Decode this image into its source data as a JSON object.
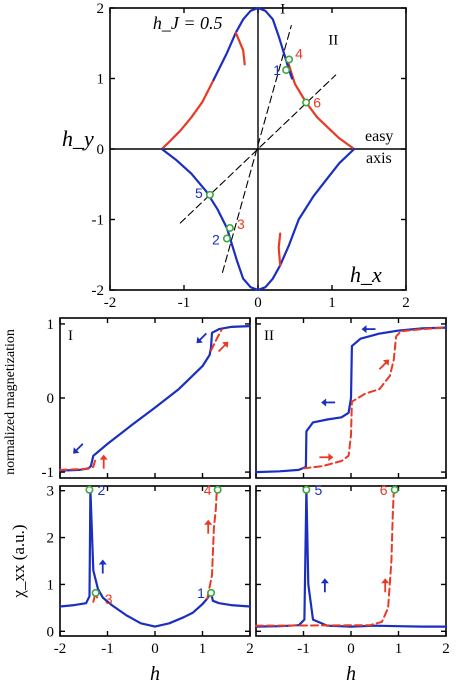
{
  "chart_data": [
    {
      "id": "top",
      "type": "line",
      "title": "h_J = 0.5",
      "xlabel": "h_x",
      "ylabel": "h_y",
      "xlim": [
        -2,
        2
      ],
      "ylim": [
        -2,
        2
      ],
      "xticks": [
        "-2",
        "-1",
        "0",
        "1",
        "2"
      ],
      "yticks": [
        "2",
        "1",
        "0",
        "-1",
        "-2"
      ],
      "annotations": {
        "easy_axis": [
          "easy",
          "axis"
        ],
        "line_I": "I",
        "line_II": "II"
      },
      "curves": {
        "blue_top": [
          [
            -0.6,
            0.98
          ],
          [
            -0.42,
            1.36
          ],
          [
            -0.3,
            1.65
          ],
          [
            -0.2,
            1.84
          ],
          [
            -0.1,
            1.96
          ],
          [
            0,
            2.0
          ],
          [
            0.1,
            1.96
          ],
          [
            0.2,
            1.84
          ],
          [
            0.28,
            1.6
          ],
          [
            0.35,
            1.36
          ],
          [
            0.42,
            1.12
          ],
          [
            0.46,
            1.0
          ]
        ],
        "blue_top_hook": [
          [
            -0.3,
            1.65
          ],
          [
            -0.2,
            1.4
          ],
          [
            -0.18,
            1.2
          ]
        ],
        "red_left_top": [
          [
            -1.3,
            0.0
          ],
          [
            -1.2,
            0.1
          ],
          [
            -1.05,
            0.26
          ],
          [
            -0.9,
            0.45
          ],
          [
            -0.75,
            0.67
          ],
          [
            -0.6,
            0.98
          ]
        ],
        "red_right_top": [
          [
            0.4,
            1.25
          ],
          [
            0.5,
            0.92
          ],
          [
            0.65,
            0.66
          ],
          [
            0.8,
            0.45
          ],
          [
            0.95,
            0.3
          ],
          [
            1.1,
            0.15
          ],
          [
            1.3,
            0.0
          ]
        ],
        "blue_bottom": [
          [
            -1.3,
            0.0
          ],
          [
            -1.1,
            -0.16
          ],
          [
            -0.9,
            -0.35
          ],
          [
            -0.7,
            -0.6
          ],
          [
            -0.55,
            -0.85
          ],
          [
            -0.42,
            -1.12
          ],
          [
            -0.35,
            -1.36
          ],
          [
            -0.28,
            -1.6
          ],
          [
            -0.2,
            -1.84
          ],
          [
            -0.1,
            -1.96
          ],
          [
            0,
            -2.0
          ],
          [
            0.1,
            -1.96
          ],
          [
            0.2,
            -1.84
          ],
          [
            0.3,
            -1.65
          ],
          [
            0.42,
            -1.36
          ],
          [
            0.55,
            -1.0
          ],
          [
            0.75,
            -0.67
          ],
          [
            0.95,
            -0.4
          ],
          [
            1.1,
            -0.2
          ],
          [
            1.3,
            0.0
          ]
        ],
        "red_bottom_hook": [
          [
            0.3,
            -1.65
          ],
          [
            0.28,
            -1.4
          ],
          [
            0.3,
            -1.2
          ]
        ],
        "dash_I": [
          [
            -0.48,
            -1.75
          ],
          [
            0.45,
            1.75
          ]
        ],
        "dash_II": [
          [
            -1.05,
            -1.05
          ],
          [
            1.05,
            1.05
          ]
        ]
      },
      "points": [
        {
          "label": "1",
          "x": 0.38,
          "y": 1.12,
          "color": "#1a2fbf"
        },
        {
          "label": "4",
          "x": 0.42,
          "y": 1.27,
          "color": "#e83a24"
        },
        {
          "label": "6",
          "x": 0.65,
          "y": 0.66,
          "color": "#e83a24"
        },
        {
          "label": "5",
          "x": -0.65,
          "y": -0.65,
          "color": "#1a2fbf"
        },
        {
          "label": "3",
          "x": -0.38,
          "y": -1.12,
          "color": "#e83a24"
        },
        {
          "label": "2",
          "x": -0.42,
          "y": -1.27,
          "color": "#1a2fbf"
        }
      ]
    },
    {
      "id": "mag-I",
      "type": "line",
      "panel_label": "I",
      "ylabel": "normalized magnetization",
      "xlim": [
        -2,
        2
      ],
      "ylim": [
        -1.08,
        1.08
      ],
      "yticks": [
        "1",
        "0",
        "-1"
      ],
      "series": [
        {
          "style": "blue-solid",
          "points": [
            [
              -2,
              -0.98
            ],
            [
              -1.6,
              -0.97
            ],
            [
              -1.4,
              -0.95
            ],
            [
              -1.35,
              -0.92
            ],
            [
              -1.3,
              -0.78
            ],
            [
              -1.0,
              -0.62
            ],
            [
              -0.5,
              -0.37
            ],
            [
              0,
              -0.13
            ],
            [
              0.5,
              0.12
            ],
            [
              1.0,
              0.43
            ],
            [
              1.15,
              0.58
            ],
            [
              1.18,
              0.68
            ],
            [
              1.2,
              0.88
            ],
            [
              1.35,
              0.93
            ],
            [
              1.6,
              0.96
            ],
            [
              2,
              0.97
            ]
          ]
        },
        {
          "style": "red-dash",
          "points": [
            [
              -2,
              -0.97
            ],
            [
              -1.5,
              -0.96
            ],
            [
              -1.3,
              -0.93
            ],
            [
              -1.25,
              -0.82
            ]
          ]
        },
        {
          "style": "red-dash",
          "points": [
            [
              1.18,
              0.64
            ],
            [
              1.3,
              0.8
            ],
            [
              1.4,
              0.92
            ]
          ]
        }
      ],
      "arrows": [
        {
          "x": -1.6,
          "y": -0.67,
          "dir": "down-left",
          "color": "#1a2fbf"
        },
        {
          "x": -1.08,
          "y": -0.88,
          "dir": "up",
          "color": "#e83a24"
        },
        {
          "x": 1.0,
          "y": 0.82,
          "dir": "down-left",
          "color": "#1a2fbf"
        },
        {
          "x": 1.42,
          "y": 0.68,
          "dir": "up-right",
          "color": "#e83a24"
        }
      ]
    },
    {
      "id": "mag-II",
      "type": "line",
      "panel_label": "II",
      "xlim": [
        -2,
        2
      ],
      "ylim": [
        -1.08,
        1.08
      ],
      "series": [
        {
          "style": "blue-solid",
          "points": [
            [
              -2,
              -1.0
            ],
            [
              -1.5,
              -0.99
            ],
            [
              -1.1,
              -0.97
            ],
            [
              -0.95,
              -0.93
            ],
            [
              -0.94,
              -0.45
            ],
            [
              -0.8,
              -0.33
            ],
            [
              -0.5,
              -0.29
            ],
            [
              -0.2,
              -0.26
            ],
            [
              -0.05,
              -0.2
            ],
            [
              0.0,
              0.0
            ],
            [
              0.02,
              0.7
            ],
            [
              0.2,
              0.8
            ],
            [
              0.6,
              0.87
            ],
            [
              1.0,
              0.91
            ],
            [
              1.5,
              0.94
            ],
            [
              2,
              0.95
            ]
          ]
        },
        {
          "style": "red-dash",
          "points": [
            [
              -1.0,
              -0.95
            ],
            [
              -0.6,
              -0.92
            ],
            [
              -0.2,
              -0.85
            ],
            [
              -0.05,
              -0.78
            ],
            [
              0.0,
              -0.5
            ],
            [
              0.02,
              -0.05
            ],
            [
              0.3,
              0.06
            ],
            [
              0.6,
              0.12
            ],
            [
              0.82,
              0.3
            ],
            [
              0.9,
              0.52
            ],
            [
              0.95,
              0.83
            ],
            [
              1.05,
              0.9
            ],
            [
              1.5,
              0.93
            ],
            [
              2,
              0.95
            ]
          ]
        }
      ],
      "arrows": [
        {
          "x": 0.4,
          "y": 0.93,
          "dir": "left",
          "color": "#1a2fbf"
        },
        {
          "x": -0.45,
          "y": -0.06,
          "dir": "left",
          "color": "#1a2fbf"
        },
        {
          "x": 0.68,
          "y": 0.44,
          "dir": "up-right",
          "color": "#e83a24"
        },
        {
          "x": -0.55,
          "y": -0.8,
          "dir": "right",
          "color": "#e83a24"
        }
      ]
    },
    {
      "id": "chi-I",
      "type": "line",
      "ylabel": "χ_xx (a.u.)",
      "xlabel": "h",
      "xlim": [
        -2,
        2
      ],
      "ylim": [
        -0.1,
        3.1
      ],
      "xticks": [
        "-2",
        "-1",
        "0",
        "1",
        "2"
      ],
      "yticks": [
        "3",
        "2",
        "1",
        "0"
      ],
      "series": [
        {
          "style": "blue-solid",
          "points": [
            [
              -2,
              0.53
            ],
            [
              -1.7,
              0.56
            ],
            [
              -1.45,
              0.6
            ],
            [
              -1.38,
              0.75
            ],
            [
              -1.36,
              3.02
            ],
            [
              -1.3,
              1.3
            ],
            [
              -1.2,
              0.9
            ],
            [
              -1.1,
              0.72
            ],
            [
              -0.9,
              0.55
            ],
            [
              -0.6,
              0.34
            ],
            [
              -0.3,
              0.17
            ],
            [
              0,
              0.1
            ],
            [
              0.3,
              0.17
            ],
            [
              0.6,
              0.3
            ],
            [
              0.8,
              0.4
            ],
            [
              1.0,
              0.58
            ],
            [
              1.1,
              0.7
            ],
            [
              1.15,
              0.78
            ],
            [
              1.18,
              0.82
            ],
            [
              1.22,
              0.65
            ],
            [
              1.35,
              0.6
            ],
            [
              1.6,
              0.56
            ],
            [
              2,
              0.53
            ]
          ]
        },
        {
          "style": "red-dash",
          "points": [
            [
              -1.3,
              0.63
            ],
            [
              -1.25,
              0.82
            ],
            [
              -1.22,
              0.72
            ]
          ]
        },
        {
          "style": "red-dash",
          "points": [
            [
              1.1,
              0.7
            ],
            [
              1.2,
              1.2
            ],
            [
              1.24,
              2.2
            ],
            [
              1.28,
              2.6
            ],
            [
              1.3,
              3.0
            ]
          ]
        }
      ],
      "points": [
        {
          "label": "2",
          "x": -1.38,
          "y": 3.02,
          "color": "#1a2fbf"
        },
        {
          "label": "3",
          "x": -1.25,
          "y": 0.82,
          "color": "#e83a24"
        },
        {
          "label": "1",
          "x": 1.18,
          "y": 0.82,
          "color": "#1a2fbf"
        },
        {
          "label": "4",
          "x": 1.32,
          "y": 3.02,
          "color": "#e83a24"
        }
      ],
      "arrows": [
        {
          "x": -1.1,
          "y": 1.35,
          "dir": "up",
          "color": "#1a2fbf"
        },
        {
          "x": 1.12,
          "y": 2.2,
          "dir": "up",
          "color": "#e83a24"
        }
      ]
    },
    {
      "id": "chi-II",
      "type": "line",
      "xlabel": "h",
      "xlim": [
        -2,
        2
      ],
      "ylim": [
        -0.1,
        3.1
      ],
      "xticks": [
        "-1",
        "0",
        "1",
        "2"
      ],
      "series": [
        {
          "style": "blue-solid",
          "points": [
            [
              -2,
              0.1
            ],
            [
              -1.5,
              0.11
            ],
            [
              -1.1,
              0.13
            ],
            [
              -0.98,
              0.25
            ],
            [
              -0.94,
              3.02
            ],
            [
              -0.9,
              1.0
            ],
            [
              -0.8,
              0.25
            ],
            [
              -0.5,
              0.12
            ],
            [
              0,
              0.1
            ],
            [
              0.5,
              0.12
            ],
            [
              1.0,
              0.11
            ],
            [
              1.5,
              0.1
            ],
            [
              2,
              0.1
            ]
          ]
        },
        {
          "style": "red-dash",
          "points": [
            [
              -2,
              0.12
            ],
            [
              0.4,
              0.13
            ],
            [
              0.65,
              0.2
            ],
            [
              0.78,
              0.5
            ],
            [
              0.85,
              1.5
            ],
            [
              0.88,
              2.5
            ],
            [
              0.9,
              3.0
            ]
          ]
        }
      ],
      "points": [
        {
          "label": "5",
          "x": -0.94,
          "y": 3.02,
          "color": "#1a2fbf"
        },
        {
          "label": "6",
          "x": 0.92,
          "y": 3.02,
          "color": "#e83a24"
        }
      ],
      "arrows": [
        {
          "x": -0.55,
          "y": 0.95,
          "dir": "up",
          "color": "#1a2fbf"
        },
        {
          "x": 0.72,
          "y": 0.95,
          "dir": "up",
          "color": "#e83a24"
        }
      ]
    }
  ]
}
